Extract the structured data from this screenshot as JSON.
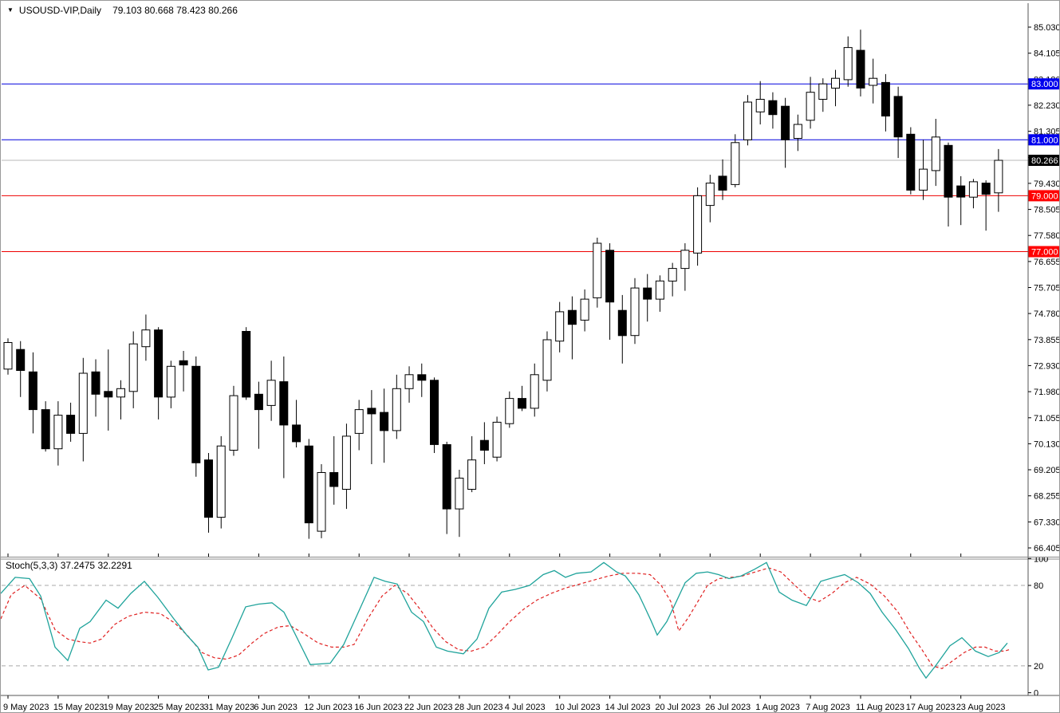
{
  "window": {
    "symbol": "USOUSD-VIP,Daily",
    "ohlc": "79.103 80.668 78.423 80.266"
  },
  "indicator": {
    "name": "Stoch(5,3,3)",
    "main_value": "37.2475",
    "signal_value": "32.2291"
  },
  "colors": {
    "bull_body": "#ffffff",
    "bear_body": "#000000",
    "outline": "#000000",
    "blue_level": "#0000dd",
    "red_level": "#ee0000",
    "price_marker_line": "#b9b9b9",
    "price_marker_badge": "#000000",
    "stoch_main": "#1fa39b",
    "stoch_signal": "#e02020",
    "grid_dash": "#a8a8a8",
    "axis_line": "#555555",
    "badge_text": "#ffffff"
  },
  "price_axis": {
    "labels": [
      "85.030",
      "84.105",
      "83.180",
      "82.230",
      "81.305",
      "80.380",
      "79.430",
      "78.505",
      "77.580",
      "76.655",
      "75.705",
      "74.780",
      "73.855",
      "72.930",
      "71.980",
      "71.055",
      "70.130",
      "69.205",
      "68.255",
      "67.330",
      "66.405"
    ]
  },
  "hlines": [
    {
      "price": 83.0,
      "label": "83.000",
      "color": "#0000dd",
      "badge": "#0000ee"
    },
    {
      "price": 81.0,
      "label": "81.000",
      "color": "#0000dd",
      "badge": "#0000ee"
    },
    {
      "price": 79.0,
      "label": "79.000",
      "color": "#ee0000",
      "badge": "#ff0000"
    },
    {
      "price": 77.0,
      "label": "77.000",
      "color": "#ee0000",
      "badge": "#ff0000"
    }
  ],
  "price_marker": {
    "price": 80.266,
    "label": "80.266"
  },
  "stoch_axis": {
    "labels": [
      "100",
      "80",
      "20",
      "0"
    ],
    "levels": [
      100,
      80,
      20,
      0
    ],
    "dashed_levels": [
      80,
      20
    ],
    "range": [
      0,
      100
    ]
  },
  "time_axis": {
    "tick_every": 4,
    "labels": [
      "9 May 2023",
      "15 May 2023",
      "19 May 2023",
      "25 May 2023",
      "31 May 2023",
      "6 Jun 2023",
      "12 Jun 2023",
      "16 Jun 2023",
      "22 Jun 2023",
      "28 Jun 2023",
      "4 Jul 2023",
      "10 Jul 2023",
      "14 Jul 2023",
      "20 Jul 2023",
      "26 Jul 2023",
      "1 Aug 2023",
      "7 Aug 2023",
      "11 Aug 2023",
      "17 Aug 2023",
      "23 Aug 2023"
    ]
  },
  "chart_data": {
    "type": "candlestick",
    "title": "USOUSD-VIP,Daily",
    "timeframe": "Daily",
    "ylim": [
      66.405,
      85.03
    ],
    "grid": false,
    "current": {
      "open": 79.103,
      "high": 80.668,
      "low": 78.423,
      "close": 80.266
    },
    "candles": [
      [
        72.8,
        73.9,
        72.6,
        73.75
      ],
      [
        73.5,
        73.8,
        71.8,
        72.75
      ],
      [
        72.7,
        73.4,
        70.5,
        71.35
      ],
      [
        71.35,
        71.65,
        69.85,
        69.95
      ],
      [
        69.95,
        71.65,
        69.35,
        71.15
      ],
      [
        71.15,
        71.6,
        70.2,
        70.5
      ],
      [
        70.5,
        73.2,
        69.5,
        72.65
      ],
      [
        72.7,
        73.15,
        71.1,
        71.9
      ],
      [
        72.0,
        73.5,
        70.6,
        71.8
      ],
      [
        71.8,
        72.4,
        71.0,
        72.1
      ],
      [
        72.0,
        74.15,
        71.4,
        73.7
      ],
      [
        73.6,
        74.75,
        73.1,
        74.2
      ],
      [
        74.2,
        74.3,
        71.0,
        71.8
      ],
      [
        71.8,
        73.1,
        71.4,
        72.9
      ],
      [
        73.1,
        73.45,
        72.0,
        72.95
      ],
      [
        72.9,
        73.25,
        68.95,
        69.45
      ],
      [
        69.55,
        69.8,
        66.95,
        67.5
      ],
      [
        67.5,
        70.4,
        67.1,
        70.05
      ],
      [
        69.9,
        72.2,
        69.7,
        71.85
      ],
      [
        74.15,
        74.3,
        71.7,
        71.8
      ],
      [
        71.9,
        72.35,
        69.95,
        71.35
      ],
      [
        71.5,
        73.1,
        70.95,
        72.4
      ],
      [
        72.35,
        73.25,
        68.9,
        70.8
      ],
      [
        70.8,
        71.7,
        70.0,
        70.2
      ],
      [
        70.05,
        70.3,
        66.73,
        67.3
      ],
      [
        67.0,
        69.4,
        66.75,
        69.1
      ],
      [
        69.1,
        70.4,
        67.95,
        68.6
      ],
      [
        68.5,
        70.85,
        67.8,
        70.4
      ],
      [
        70.5,
        71.7,
        69.9,
        71.35
      ],
      [
        71.4,
        72.05,
        69.4,
        71.2
      ],
      [
        71.25,
        72.1,
        69.45,
        70.6
      ],
      [
        70.6,
        72.6,
        70.3,
        72.1
      ],
      [
        72.1,
        72.9,
        71.6,
        72.6
      ],
      [
        72.6,
        73.0,
        71.8,
        72.4
      ],
      [
        72.4,
        72.5,
        69.8,
        70.1
      ],
      [
        70.1,
        70.2,
        66.9,
        67.8
      ],
      [
        67.8,
        69.2,
        66.8,
        68.9
      ],
      [
        68.5,
        70.4,
        68.4,
        69.55
      ],
      [
        70.25,
        70.9,
        69.4,
        69.9
      ],
      [
        69.65,
        71.1,
        69.5,
        70.9
      ],
      [
        70.85,
        72.0,
        70.7,
        71.75
      ],
      [
        71.75,
        72.2,
        71.3,
        71.4
      ],
      [
        71.4,
        73.0,
        71.1,
        72.6
      ],
      [
        72.4,
        74.15,
        72.0,
        73.85
      ],
      [
        73.8,
        75.2,
        73.4,
        74.85
      ],
      [
        74.9,
        75.4,
        73.15,
        74.4
      ],
      [
        74.55,
        75.65,
        74.15,
        75.3
      ],
      [
        75.35,
        77.5,
        75.0,
        77.3
      ],
      [
        77.05,
        77.3,
        73.85,
        75.2
      ],
      [
        74.9,
        75.45,
        73.0,
        74.0
      ],
      [
        74.0,
        76.05,
        73.7,
        75.7
      ],
      [
        75.7,
        76.2,
        74.5,
        75.3
      ],
      [
        75.3,
        76.15,
        74.85,
        75.95
      ],
      [
        75.95,
        76.6,
        75.4,
        76.4
      ],
      [
        76.4,
        77.3,
        75.6,
        77.05
      ],
      [
        76.95,
        79.3,
        76.5,
        79.0
      ],
      [
        78.65,
        79.75,
        78.05,
        79.45
      ],
      [
        79.7,
        80.3,
        78.85,
        79.2
      ],
      [
        79.4,
        81.2,
        79.3,
        80.9
      ],
      [
        81.0,
        82.6,
        80.8,
        82.35
      ],
      [
        82.0,
        83.1,
        81.55,
        82.45
      ],
      [
        82.4,
        82.7,
        81.4,
        81.9
      ],
      [
        82.2,
        82.5,
        80.0,
        81.0
      ],
      [
        81.05,
        81.9,
        80.6,
        81.55
      ],
      [
        81.7,
        83.25,
        81.4,
        82.7
      ],
      [
        82.45,
        83.2,
        82.0,
        83.0
      ],
      [
        82.85,
        83.5,
        82.2,
        83.2
      ],
      [
        83.15,
        84.7,
        82.9,
        84.3
      ],
      [
        84.2,
        84.94,
        82.55,
        82.85
      ],
      [
        82.95,
        83.9,
        82.3,
        83.2
      ],
      [
        83.05,
        83.35,
        81.3,
        81.85
      ],
      [
        82.55,
        82.9,
        80.35,
        81.1
      ],
      [
        81.2,
        81.45,
        79.05,
        79.2
      ],
      [
        79.2,
        81.0,
        78.85,
        79.95
      ],
      [
        79.9,
        81.75,
        79.35,
        81.1
      ],
      [
        80.8,
        80.9,
        77.9,
        78.95
      ],
      [
        79.35,
        79.7,
        77.95,
        78.95
      ],
      [
        78.95,
        79.6,
        78.55,
        79.5
      ],
      [
        79.45,
        79.55,
        77.75,
        79.05
      ],
      [
        79.103,
        80.668,
        78.423,
        80.266
      ]
    ],
    "stochastic": {
      "name": "Stoch(5,3,3)",
      "main_last": 37.2475,
      "signal_last": 32.2291,
      "main": [
        [
          0,
          74
        ],
        [
          18,
          86
        ],
        [
          36,
          85
        ],
        [
          50,
          72
        ],
        [
          68,
          34
        ],
        [
          84,
          24
        ],
        [
          99,
          48
        ],
        [
          112,
          53
        ],
        [
          132,
          69
        ],
        [
          147,
          63
        ],
        [
          163,
          74
        ],
        [
          180,
          83
        ],
        [
          197,
          71
        ],
        [
          217,
          55
        ],
        [
          233,
          43
        ],
        [
          247,
          34
        ],
        [
          260,
          17
        ],
        [
          273,
          19
        ],
        [
          290,
          41
        ],
        [
          307,
          64
        ],
        [
          323,
          66
        ],
        [
          340,
          67
        ],
        [
          355,
          60
        ],
        [
          368,
          45
        ],
        [
          388,
          21
        ],
        [
          413,
          22
        ],
        [
          430,
          36
        ],
        [
          443,
          53
        ],
        [
          468,
          86
        ],
        [
          482,
          83
        ],
        [
          497,
          81
        ],
        [
          515,
          60
        ],
        [
          530,
          53
        ],
        [
          546,
          34
        ],
        [
          560,
          31
        ],
        [
          580,
          29
        ],
        [
          597,
          40
        ],
        [
          612,
          63
        ],
        [
          628,
          75
        ],
        [
          645,
          77
        ],
        [
          663,
          80
        ],
        [
          680,
          88
        ],
        [
          694,
          91
        ],
        [
          708,
          86
        ],
        [
          722,
          89
        ],
        [
          740,
          90
        ],
        [
          756,
          97
        ],
        [
          772,
          90
        ],
        [
          783,
          87
        ],
        [
          792,
          80
        ],
        [
          800,
          73
        ],
        [
          808,
          63
        ],
        [
          815,
          54
        ],
        [
          823,
          43
        ],
        [
          835,
          53
        ],
        [
          847,
          68
        ],
        [
          858,
          82
        ],
        [
          872,
          89
        ],
        [
          886,
          90
        ],
        [
          900,
          88
        ],
        [
          913,
          85
        ],
        [
          928,
          87
        ],
        [
          945,
          92
        ],
        [
          960,
          97
        ],
        [
          976,
          75
        ],
        [
          992,
          69
        ],
        [
          1010,
          65
        ],
        [
          1028,
          83
        ],
        [
          1045,
          86
        ],
        [
          1058,
          88
        ],
        [
          1075,
          82
        ],
        [
          1090,
          74
        ],
        [
          1105,
          60
        ],
        [
          1122,
          47
        ],
        [
          1138,
          33
        ],
        [
          1152,
          18
        ],
        [
          1160,
          11
        ],
        [
          1172,
          20
        ],
        [
          1190,
          35
        ],
        [
          1205,
          41
        ],
        [
          1222,
          31
        ],
        [
          1238,
          27
        ],
        [
          1252,
          30
        ],
        [
          1262,
          37
        ]
      ],
      "signal": [
        [
          0,
          55
        ],
        [
          13,
          73
        ],
        [
          30,
          80
        ],
        [
          50,
          70
        ],
        [
          68,
          47
        ],
        [
          84,
          40
        ],
        [
          99,
          38
        ],
        [
          112,
          37
        ],
        [
          126,
          40
        ],
        [
          143,
          51
        ],
        [
          160,
          57
        ],
        [
          180,
          60
        ],
        [
          200,
          59
        ],
        [
          218,
          52
        ],
        [
          235,
          42
        ],
        [
          252,
          30
        ],
        [
          268,
          26
        ],
        [
          283,
          25
        ],
        [
          298,
          28
        ],
        [
          315,
          37
        ],
        [
          330,
          44
        ],
        [
          348,
          49
        ],
        [
          363,
          50
        ],
        [
          380,
          44
        ],
        [
          398,
          37
        ],
        [
          415,
          34
        ],
        [
          430,
          34
        ],
        [
          443,
          36
        ],
        [
          460,
          55
        ],
        [
          478,
          72
        ],
        [
          494,
          80
        ],
        [
          510,
          74
        ],
        [
          526,
          62
        ],
        [
          542,
          48
        ],
        [
          558,
          38
        ],
        [
          574,
          32
        ],
        [
          590,
          31
        ],
        [
          606,
          34
        ],
        [
          622,
          43
        ],
        [
          638,
          53
        ],
        [
          655,
          62
        ],
        [
          672,
          69
        ],
        [
          690,
          74
        ],
        [
          708,
          78
        ],
        [
          726,
          81
        ],
        [
          744,
          84
        ],
        [
          762,
          87
        ],
        [
          780,
          89
        ],
        [
          798,
          89
        ],
        [
          814,
          88
        ],
        [
          828,
          80
        ],
        [
          840,
          68
        ],
        [
          850,
          46
        ],
        [
          862,
          56
        ],
        [
          874,
          68
        ],
        [
          886,
          80
        ],
        [
          900,
          85
        ],
        [
          916,
          86
        ],
        [
          930,
          87
        ],
        [
          946,
          90
        ],
        [
          963,
          93
        ],
        [
          978,
          90
        ],
        [
          994,
          81
        ],
        [
          1012,
          71
        ],
        [
          1026,
          68
        ],
        [
          1042,
          74
        ],
        [
          1058,
          82
        ],
        [
          1073,
          86
        ],
        [
          1090,
          81
        ],
        [
          1108,
          72
        ],
        [
          1125,
          60
        ],
        [
          1140,
          45
        ],
        [
          1155,
          32
        ],
        [
          1168,
          20
        ],
        [
          1180,
          18
        ],
        [
          1194,
          24
        ],
        [
          1208,
          30
        ],
        [
          1222,
          34
        ],
        [
          1234,
          34
        ],
        [
          1247,
          31
        ],
        [
          1258,
          31
        ],
        [
          1264,
          32
        ]
      ]
    }
  }
}
